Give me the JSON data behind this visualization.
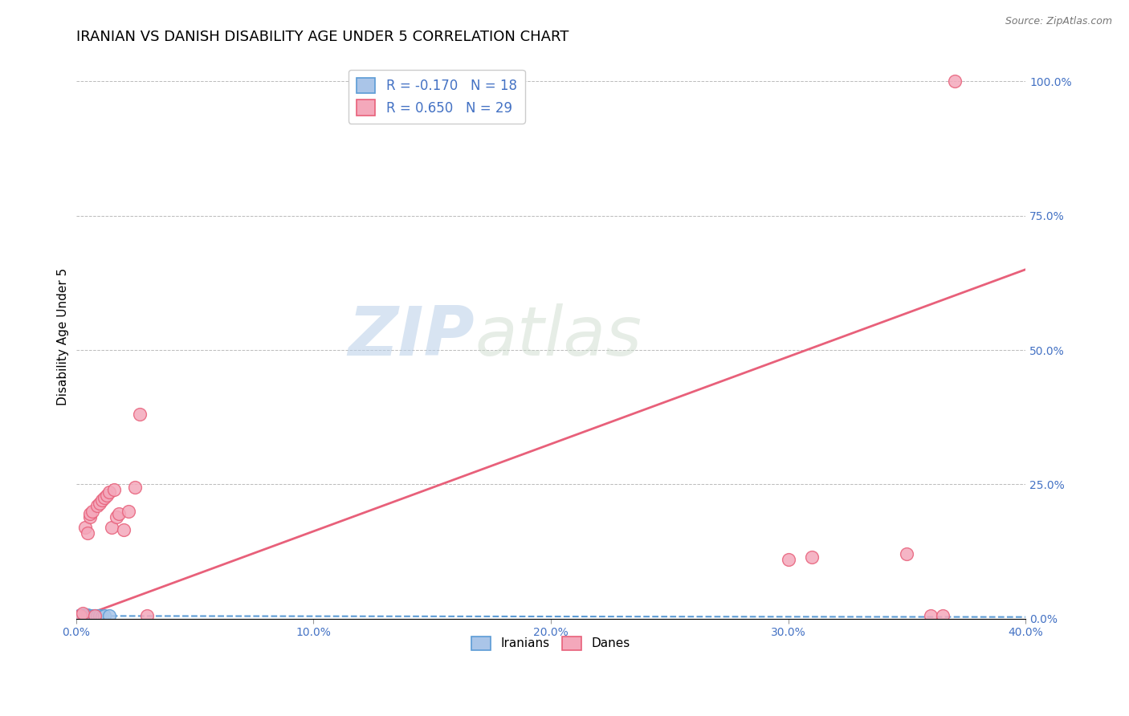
{
  "title": "IRANIAN VS DANISH DISABILITY AGE UNDER 5 CORRELATION CHART",
  "source": "Source: ZipAtlas.com",
  "ylabel": "Disability Age Under 5",
  "xlim": [
    0.0,
    0.4
  ],
  "ylim": [
    0.0,
    1.05
  ],
  "xticks": [
    0.0,
    0.1,
    0.2,
    0.3,
    0.4
  ],
  "xtick_labels": [
    "0.0%",
    "10.0%",
    "20.0%",
    "30.0%",
    "40.0%"
  ],
  "yticks_right": [
    0.0,
    0.25,
    0.5,
    0.75,
    1.0
  ],
  "ytick_labels_right": [
    "0.0%",
    "25.0%",
    "50.0%",
    "75.0%",
    "100.0%"
  ],
  "iranian_R": -0.17,
  "iranian_N": 18,
  "danish_R": 0.65,
  "danish_N": 29,
  "iranian_color": "#aac5e8",
  "danish_color": "#f4a8bb",
  "iranian_line_color": "#5b9bd5",
  "danish_line_color": "#e8607a",
  "right_axis_color": "#4472c4",
  "title_fontsize": 13,
  "axis_label_fontsize": 11,
  "tick_fontsize": 10,
  "legend_fontsize": 12,
  "watermark_zip": "ZIP",
  "watermark_atlas": "atlas",
  "iranian_x": [
    0.001,
    0.002,
    0.002,
    0.003,
    0.003,
    0.004,
    0.004,
    0.005,
    0.005,
    0.006,
    0.007,
    0.007,
    0.008,
    0.009,
    0.01,
    0.011,
    0.012,
    0.014
  ],
  "iranian_y": [
    0.005,
    0.004,
    0.006,
    0.003,
    0.007,
    0.005,
    0.006,
    0.004,
    0.007,
    0.005,
    0.004,
    0.006,
    0.005,
    0.006,
    0.005,
    0.004,
    0.005,
    0.006
  ],
  "danish_x": [
    0.002,
    0.003,
    0.004,
    0.005,
    0.006,
    0.006,
    0.007,
    0.008,
    0.009,
    0.01,
    0.011,
    0.012,
    0.013,
    0.014,
    0.015,
    0.016,
    0.017,
    0.018,
    0.02,
    0.022,
    0.025,
    0.027,
    0.03,
    0.3,
    0.31,
    0.35,
    0.36,
    0.365,
    0.37
  ],
  "danish_y": [
    0.005,
    0.01,
    0.17,
    0.16,
    0.19,
    0.195,
    0.2,
    0.005,
    0.21,
    0.215,
    0.22,
    0.225,
    0.23,
    0.235,
    0.17,
    0.24,
    0.19,
    0.195,
    0.165,
    0.2,
    0.245,
    0.38,
    0.005,
    0.11,
    0.115,
    0.12,
    0.005,
    0.005,
    1.0
  ],
  "danish_line_x": [
    0.0,
    0.4
  ],
  "danish_line_y": [
    0.0,
    0.65
  ],
  "iranian_line_x": [
    0.0,
    0.4
  ],
  "iranian_line_y": [
    0.005,
    0.003
  ]
}
